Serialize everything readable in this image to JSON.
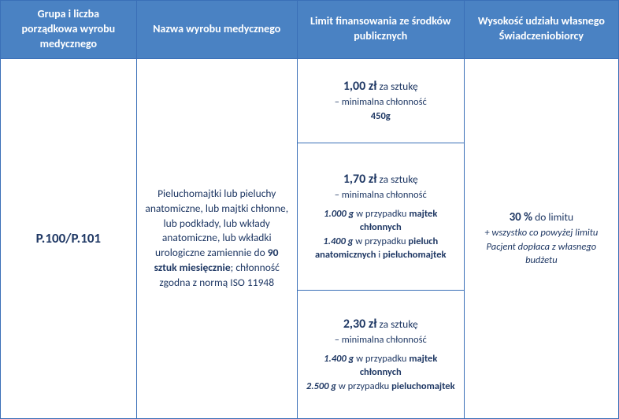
{
  "headers": {
    "col1": "Grupa i liczba porządkowa wyrobu medycznego",
    "col2": "Nazwa wyrobu medycznego",
    "col3": "Limit finansowania ze środków publicznych",
    "col4": "Wysokość udziału własnego Świadczeniobiorcy"
  },
  "row": {
    "code": "P.100/P.101",
    "desc_pre": "Pieluchomajtki lub pieluchy anatomiczne, lub majtki chłonne, lub podkłady, lub wkłady anatomiczne, lub wkładki urologiczne zamiennie do ",
    "desc_bold": "90 sztuk miesięcznie",
    "desc_post": "; chłonność zgodna z normą ISO 11948",
    "limit1": {
      "price": "1,00 zł",
      "per": " za sztukę",
      "sub1": "– minimalna chłonność",
      "sub2": "450g"
    },
    "limit2": {
      "price": "1,70 zł",
      "per": " za sztukę",
      "sub1": "– minimalna chłonność",
      "l2a_val": "1.000 g",
      "l2a_txt": " w przypadku ",
      "l2a_bold": "majtek chłonnych",
      "l2b_val": "1.400 g",
      "l2b_txt": " w przypadku ",
      "l2b_bold1": "pieluch anatomicznych",
      "l2b_and": " i ",
      "l2b_bold2": "pieluchomajtek"
    },
    "limit3": {
      "price": "2,30 zł",
      "per": " za sztukę",
      "sub1": "– minimalna chłonność",
      "l3a_val": "1.400 g",
      "l3a_txt": " w przypadku ",
      "l3a_bold": "majtek chłonnych",
      "l3b_val": "2.500 g",
      "l3b_txt": " w przypadku ",
      "l3b_bold": "pieluchomajtek"
    },
    "share_pct": "30 %",
    "share_txt": " do limitu",
    "share_note": "+ wszystko co powyżej limitu Pacjent dopłaca z własnego budżetu"
  }
}
